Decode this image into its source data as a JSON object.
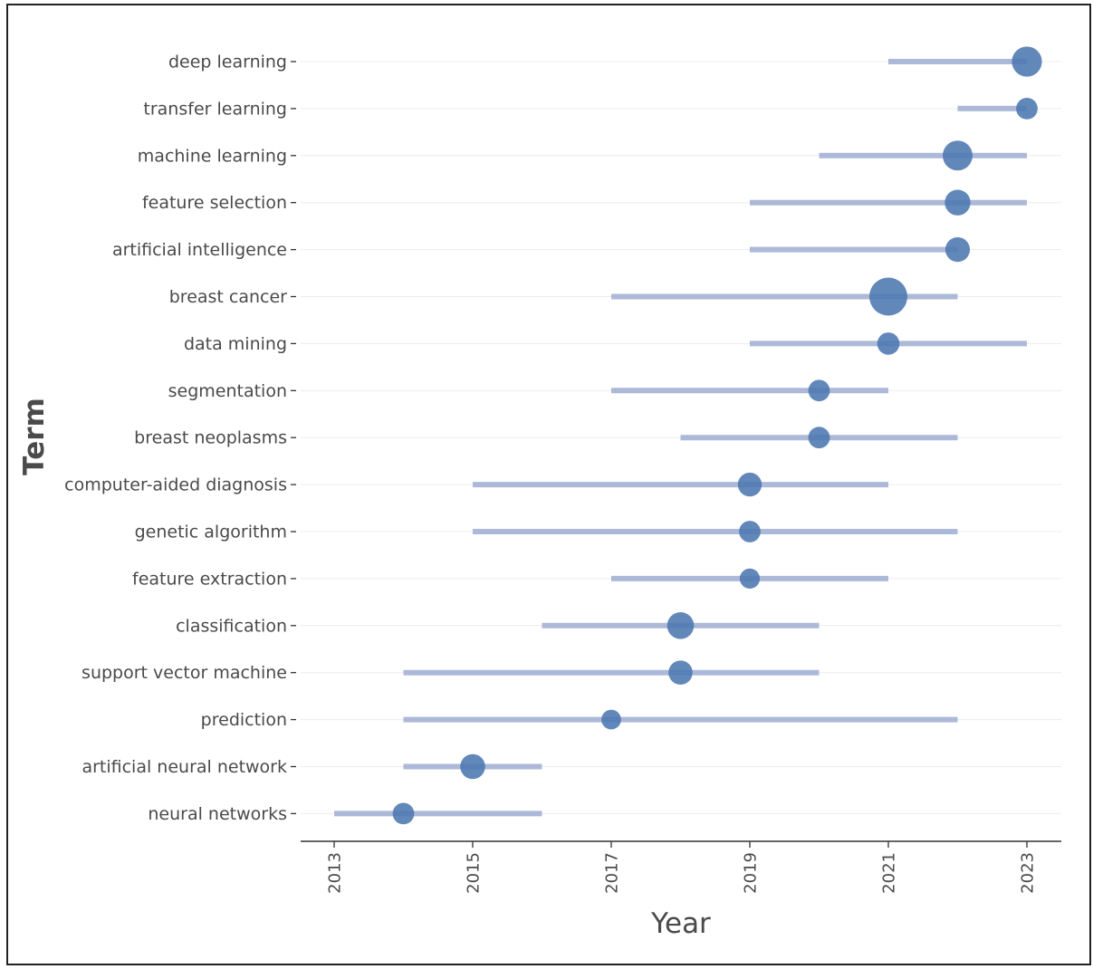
{
  "chart_data": {
    "type": "scatter",
    "xlabel": "Year",
    "ylabel": "Term",
    "xlim": [
      2012.5,
      2023.5
    ],
    "x_ticks": [
      "2013",
      "2015",
      "2017",
      "2019",
      "2021",
      "2023"
    ],
    "grid": "horizontal",
    "colors": {
      "point": "#4c78b0",
      "range": "#a9b6d6",
      "grid": "#ececec",
      "text": "#4a4a4a",
      "axis": "#333333"
    },
    "terms": [
      {
        "term": "deep learning",
        "start": 2021,
        "end": 2023,
        "median": 2023,
        "freq": 70
      },
      {
        "term": "transfer learning",
        "start": 2022,
        "end": 2023,
        "median": 2023,
        "freq": 22
      },
      {
        "term": "machine learning",
        "start": 2020,
        "end": 2023,
        "median": 2022,
        "freq": 68
      },
      {
        "term": "feature selection",
        "start": 2019,
        "end": 2023,
        "median": 2022,
        "freq": 42
      },
      {
        "term": "artificial intelligence",
        "start": 2019,
        "end": 2022,
        "median": 2022,
        "freq": 36
      },
      {
        "term": "breast cancer",
        "start": 2017,
        "end": 2022,
        "median": 2021,
        "freq": 140
      },
      {
        "term": "data mining",
        "start": 2019,
        "end": 2023,
        "median": 2021,
        "freq": 25
      },
      {
        "term": "segmentation",
        "start": 2017,
        "end": 2021,
        "median": 2020,
        "freq": 22
      },
      {
        "term": "breast neoplasms",
        "start": 2018,
        "end": 2022,
        "median": 2020,
        "freq": 22
      },
      {
        "term": "computer-aided diagnosis",
        "start": 2015,
        "end": 2021,
        "median": 2019,
        "freq": 32
      },
      {
        "term": "genetic algorithm",
        "start": 2015,
        "end": 2022,
        "median": 2019,
        "freq": 22
      },
      {
        "term": "feature extraction",
        "start": 2017,
        "end": 2021,
        "median": 2019,
        "freq": 16
      },
      {
        "term": "classification",
        "start": 2016,
        "end": 2020,
        "median": 2018,
        "freq": 48
      },
      {
        "term": "support vector machine",
        "start": 2014,
        "end": 2020,
        "median": 2018,
        "freq": 33
      },
      {
        "term": "prediction",
        "start": 2014,
        "end": 2022,
        "median": 2017,
        "freq": 15
      },
      {
        "term": "artificial neural network",
        "start": 2014,
        "end": 2016,
        "median": 2015,
        "freq": 38
      },
      {
        "term": "neural networks",
        "start": 2013,
        "end": 2016,
        "median": 2014,
        "freq": 22
      }
    ]
  }
}
